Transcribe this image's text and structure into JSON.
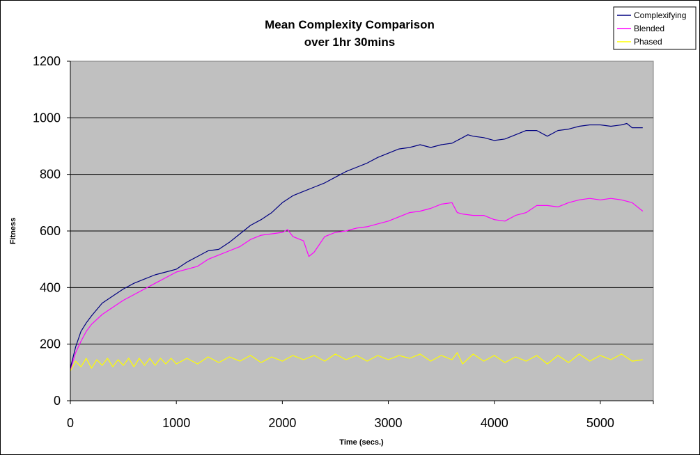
{
  "chart_data": {
    "type": "line",
    "title": [
      "Mean Complexity Comparison",
      "over 1hr 30mins"
    ],
    "xlabel": "Time (secs.)",
    "ylabel": "Fitness",
    "xlim": [
      0,
      5500
    ],
    "ylim": [
      0,
      1200
    ],
    "xticks": [
      "0",
      "1000",
      "2000",
      "3000",
      "4000",
      "5000"
    ],
    "yticks": [
      "0",
      "200",
      "400",
      "600",
      "800",
      "1000",
      "1200"
    ],
    "grid": "horizontal",
    "plot_background": "#c0c0c0",
    "legend_position": "top-right",
    "series": [
      {
        "name": "Complexifying",
        "color": "#000080",
        "x": [
          0,
          50,
          100,
          150,
          200,
          300,
          400,
          500,
          600,
          700,
          800,
          900,
          1000,
          1100,
          1200,
          1300,
          1400,
          1500,
          1600,
          1700,
          1800,
          1900,
          2000,
          2100,
          2200,
          2300,
          2400,
          2500,
          2600,
          2700,
          2800,
          2900,
          3000,
          3100,
          3200,
          3300,
          3400,
          3500,
          3600,
          3700,
          3750,
          3800,
          3900,
          4000,
          4100,
          4200,
          4300,
          4400,
          4500,
          4600,
          4700,
          4800,
          4900,
          5000,
          5100,
          5200,
          5250,
          5300,
          5400
        ],
        "y": [
          115,
          190,
          245,
          275,
          300,
          345,
          370,
          395,
          415,
          430,
          445,
          455,
          465,
          490,
          510,
          530,
          535,
          560,
          590,
          620,
          640,
          665,
          700,
          725,
          740,
          755,
          770,
          790,
          810,
          825,
          840,
          860,
          875,
          890,
          895,
          905,
          895,
          905,
          910,
          930,
          940,
          935,
          930,
          920,
          925,
          940,
          955,
          955,
          935,
          955,
          960,
          970,
          975,
          975,
          970,
          975,
          980,
          965,
          965
        ]
      },
      {
        "name": "Blended",
        "color": "#ff00ff",
        "x": [
          0,
          50,
          100,
          150,
          200,
          300,
          400,
          500,
          600,
          700,
          800,
          900,
          1000,
          1100,
          1200,
          1300,
          1400,
          1500,
          1600,
          1700,
          1800,
          1900,
          2000,
          2050,
          2100,
          2200,
          2250,
          2300,
          2400,
          2500,
          2600,
          2700,
          2800,
          2900,
          3000,
          3100,
          3200,
          3300,
          3400,
          3500,
          3600,
          3650,
          3700,
          3800,
          3900,
          4000,
          4100,
          4200,
          4300,
          4400,
          4500,
          4600,
          4700,
          4800,
          4900,
          5000,
          5100,
          5200,
          5300,
          5400
        ],
        "y": [
          110,
          170,
          210,
          245,
          270,
          305,
          330,
          355,
          375,
          395,
          415,
          435,
          455,
          465,
          475,
          500,
          515,
          530,
          545,
          570,
          585,
          590,
          595,
          605,
          580,
          565,
          510,
          525,
          580,
          595,
          600,
          610,
          615,
          625,
          635,
          650,
          665,
          670,
          680,
          695,
          700,
          665,
          660,
          655,
          655,
          640,
          635,
          655,
          665,
          690,
          690,
          685,
          700,
          710,
          715,
          710,
          715,
          710,
          700,
          670
        ]
      },
      {
        "name": "Phased",
        "color": "#ffff00",
        "x": [
          0,
          50,
          100,
          150,
          200,
          250,
          300,
          350,
          400,
          450,
          500,
          550,
          600,
          650,
          700,
          750,
          800,
          850,
          900,
          950,
          1000,
          1100,
          1200,
          1300,
          1400,
          1500,
          1600,
          1700,
          1800,
          1900,
          2000,
          2100,
          2200,
          2300,
          2400,
          2500,
          2600,
          2700,
          2800,
          2900,
          3000,
          3100,
          3200,
          3300,
          3400,
          3500,
          3600,
          3650,
          3700,
          3800,
          3900,
          4000,
          4100,
          4200,
          4300,
          4400,
          4500,
          4600,
          4700,
          4800,
          4900,
          5000,
          5100,
          5200,
          5300,
          5400
        ],
        "y": [
          105,
          140,
          120,
          150,
          115,
          145,
          125,
          150,
          120,
          145,
          125,
          150,
          120,
          150,
          125,
          150,
          125,
          150,
          130,
          150,
          130,
          150,
          130,
          155,
          135,
          155,
          140,
          160,
          135,
          155,
          140,
          160,
          145,
          160,
          140,
          165,
          145,
          160,
          140,
          160,
          145,
          160,
          150,
          165,
          140,
          160,
          145,
          170,
          130,
          165,
          140,
          160,
          135,
          155,
          140,
          160,
          130,
          160,
          135,
          165,
          140,
          160,
          145,
          165,
          140,
          145
        ]
      }
    ]
  }
}
